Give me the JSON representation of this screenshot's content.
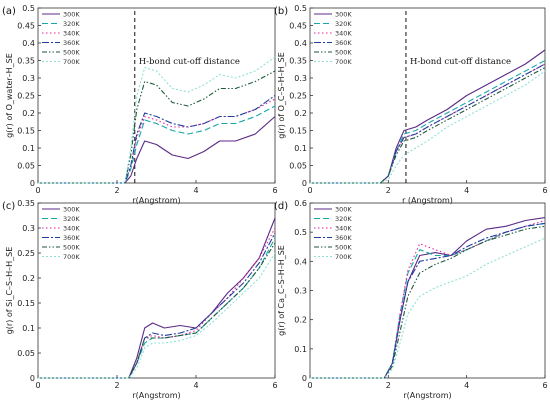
{
  "chart_data": [
    {
      "type": "line",
      "panel": "(a)",
      "xlabel": "r(Angstrom)",
      "ylabel": "g(r) of O_water–H_SE",
      "xlim": [
        0,
        6
      ],
      "ylim": [
        0,
        0.5
      ],
      "xticks": [
        0,
        2,
        4,
        6
      ],
      "yticks": [
        0,
        0.05,
        0.1,
        0.15,
        0.2,
        0.25,
        0.3,
        0.35,
        0.4,
        0.45,
        0.5
      ],
      "annotation": {
        "text": "H-bond cut-off distance",
        "x": 2.45
      },
      "legend_position": "top-left",
      "series": [
        {
          "name": "300K",
          "color": "#5b2a86",
          "dash": "",
          "x": [
            0,
            2.2,
            2.35,
            2.5,
            2.7,
            3.0,
            3.4,
            3.8,
            4.2,
            4.6,
            5.0,
            5.5,
            6.0
          ],
          "y": [
            0,
            0,
            0.02,
            0.07,
            0.12,
            0.11,
            0.08,
            0.07,
            0.09,
            0.12,
            0.12,
            0.14,
            0.19
          ]
        },
        {
          "name": "320K",
          "color": "#1aa6a6",
          "dash": "6,3",
          "x": [
            0,
            2.2,
            2.35,
            2.5,
            2.7,
            3.0,
            3.4,
            3.8,
            4.2,
            4.6,
            5.0,
            5.5,
            6.0
          ],
          "y": [
            0,
            0,
            0.04,
            0.11,
            0.18,
            0.17,
            0.15,
            0.14,
            0.15,
            0.17,
            0.17,
            0.19,
            0.22
          ]
        },
        {
          "name": "340K",
          "color": "#e6259b",
          "dash": "1.5,2.5",
          "x": [
            0,
            2.2,
            2.35,
            2.5,
            2.7,
            3.0,
            3.4,
            3.8,
            4.2,
            4.6,
            5.0,
            5.5,
            6.0
          ],
          "y": [
            0,
            0,
            0.05,
            0.13,
            0.19,
            0.18,
            0.16,
            0.16,
            0.17,
            0.19,
            0.19,
            0.21,
            0.24
          ]
        },
        {
          "name": "360K",
          "color": "#1f3f9e",
          "dash": "7,2,2,2",
          "x": [
            0,
            2.2,
            2.35,
            2.5,
            2.7,
            3.0,
            3.4,
            3.8,
            4.2,
            4.6,
            5.0,
            5.5,
            6.0
          ],
          "y": [
            0,
            0,
            0.05,
            0.14,
            0.2,
            0.19,
            0.17,
            0.16,
            0.17,
            0.19,
            0.19,
            0.21,
            0.25
          ]
        },
        {
          "name": "500K",
          "color": "#1e5a3a",
          "dash": "5,2,1.5,2,1.5,2",
          "x": [
            0,
            2.2,
            2.35,
            2.5,
            2.7,
            3.0,
            3.4,
            3.8,
            4.2,
            4.6,
            5.0,
            5.5,
            6.0
          ],
          "y": [
            0,
            0,
            0.08,
            0.21,
            0.29,
            0.28,
            0.23,
            0.22,
            0.24,
            0.27,
            0.27,
            0.29,
            0.32
          ]
        },
        {
          "name": "700K",
          "color": "#8fe0d8",
          "dash": "2,2",
          "x": [
            0,
            2.2,
            2.35,
            2.5,
            2.7,
            3.0,
            3.4,
            3.8,
            4.2,
            4.6,
            5.0,
            5.5,
            6.0
          ],
          "y": [
            0,
            0,
            0.1,
            0.25,
            0.33,
            0.32,
            0.27,
            0.26,
            0.28,
            0.31,
            0.3,
            0.32,
            0.36
          ]
        }
      ]
    },
    {
      "type": "line",
      "panel": "(b)",
      "xlabel": "r (Angstrom)",
      "ylabel": "g(r) of O_C–S–H–H_SE",
      "xlim": [
        0,
        6
      ],
      "ylim": [
        0,
        0.5
      ],
      "xticks": [
        0,
        2,
        4,
        6
      ],
      "yticks": [
        0,
        0.05,
        0.1,
        0.15,
        0.2,
        0.25,
        0.3,
        0.35,
        0.4,
        0.45,
        0.5
      ],
      "annotation": {
        "text": "H-bond cut-off distance",
        "x": 2.45
      },
      "legend_position": "top-left",
      "series": [
        {
          "name": "300K",
          "color": "#5b2a86",
          "dash": "",
          "x": [
            0,
            1.8,
            2.0,
            2.2,
            2.4,
            2.7,
            3.0,
            3.5,
            4.0,
            4.5,
            5.0,
            5.5,
            6.0
          ],
          "y": [
            0,
            0,
            0.02,
            0.1,
            0.15,
            0.16,
            0.18,
            0.21,
            0.25,
            0.28,
            0.31,
            0.34,
            0.38
          ]
        },
        {
          "name": "320K",
          "color": "#1aa6a6",
          "dash": "6,3",
          "x": [
            0,
            1.8,
            2.0,
            2.2,
            2.4,
            2.7,
            3.0,
            3.5,
            4.0,
            4.5,
            5.0,
            5.5,
            6.0
          ],
          "y": [
            0,
            0,
            0.02,
            0.09,
            0.14,
            0.15,
            0.17,
            0.2,
            0.23,
            0.26,
            0.29,
            0.32,
            0.35
          ]
        },
        {
          "name": "340K",
          "color": "#e6259b",
          "dash": "1.5,2.5",
          "x": [
            0,
            1.8,
            2.0,
            2.2,
            2.4,
            2.7,
            3.0,
            3.5,
            4.0,
            4.5,
            5.0,
            5.5,
            6.0
          ],
          "y": [
            0,
            0,
            0.02,
            0.09,
            0.13,
            0.14,
            0.16,
            0.19,
            0.22,
            0.25,
            0.28,
            0.31,
            0.34
          ]
        },
        {
          "name": "360K",
          "color": "#1f3f9e",
          "dash": "7,2,2,2",
          "x": [
            0,
            1.8,
            2.0,
            2.2,
            2.4,
            2.7,
            3.0,
            3.5,
            4.0,
            4.5,
            5.0,
            5.5,
            6.0
          ],
          "y": [
            0,
            0,
            0.02,
            0.09,
            0.13,
            0.14,
            0.16,
            0.19,
            0.22,
            0.25,
            0.28,
            0.31,
            0.34
          ]
        },
        {
          "name": "500K",
          "color": "#1e5a3a",
          "dash": "5,2,1.5,2,1.5,2",
          "x": [
            0,
            1.8,
            2.0,
            2.2,
            2.4,
            2.7,
            3.0,
            3.5,
            4.0,
            4.5,
            5.0,
            5.5,
            6.0
          ],
          "y": [
            0,
            0,
            0.02,
            0.08,
            0.12,
            0.13,
            0.15,
            0.18,
            0.21,
            0.24,
            0.27,
            0.3,
            0.33
          ]
        },
        {
          "name": "700K",
          "color": "#8fe0d8",
          "dash": "2,2",
          "x": [
            0,
            1.8,
            2.0,
            2.2,
            2.4,
            2.7,
            3.0,
            3.5,
            4.0,
            4.5,
            5.0,
            5.5,
            6.0
          ],
          "y": [
            0,
            0,
            0.01,
            0.05,
            0.08,
            0.1,
            0.12,
            0.16,
            0.19,
            0.22,
            0.25,
            0.28,
            0.32
          ]
        }
      ]
    },
    {
      "type": "line",
      "panel": "(c)",
      "xlabel": "r(Angstrom)",
      "ylabel": "g(r) of Si_C–S–H–H_SE",
      "xlim": [
        0,
        6
      ],
      "ylim": [
        0,
        0.35
      ],
      "xticks": [
        0,
        2,
        4,
        6
      ],
      "yticks": [
        0,
        0.05,
        0.1,
        0.15,
        0.2,
        0.25,
        0.3,
        0.35
      ],
      "legend_position": "top-left",
      "series": [
        {
          "name": "300K",
          "color": "#5b2a86",
          "dash": "",
          "x": [
            0,
            2.3,
            2.5,
            2.7,
            2.9,
            3.2,
            3.6,
            4.0,
            4.4,
            4.8,
            5.2,
            5.6,
            6.0
          ],
          "y": [
            0,
            0,
            0.04,
            0.1,
            0.11,
            0.1,
            0.105,
            0.1,
            0.13,
            0.17,
            0.2,
            0.24,
            0.32
          ]
        },
        {
          "name": "320K",
          "color": "#1aa6a6",
          "dash": "6,3",
          "x": [
            0,
            2.3,
            2.5,
            2.7,
            2.9,
            3.2,
            3.6,
            4.0,
            4.4,
            4.8,
            5.2,
            5.6,
            6.0
          ],
          "y": [
            0,
            0,
            0.03,
            0.07,
            0.08,
            0.08,
            0.085,
            0.09,
            0.12,
            0.15,
            0.18,
            0.22,
            0.28
          ]
        },
        {
          "name": "340K",
          "color": "#e6259b",
          "dash": "1.5,2.5",
          "x": [
            0,
            2.3,
            2.5,
            2.7,
            2.9,
            3.2,
            3.6,
            4.0,
            4.4,
            4.8,
            5.2,
            5.6,
            6.0
          ],
          "y": [
            0,
            0,
            0.03,
            0.08,
            0.085,
            0.08,
            0.085,
            0.095,
            0.13,
            0.16,
            0.2,
            0.24,
            0.3
          ]
        },
        {
          "name": "360K",
          "color": "#1f3f9e",
          "dash": "7,2,2,2",
          "x": [
            0,
            2.3,
            2.5,
            2.7,
            2.9,
            3.2,
            3.6,
            4.0,
            4.4,
            4.8,
            5.2,
            5.6,
            6.0
          ],
          "y": [
            0,
            0,
            0.03,
            0.08,
            0.09,
            0.085,
            0.09,
            0.1,
            0.13,
            0.16,
            0.19,
            0.23,
            0.29
          ]
        },
        {
          "name": "500K",
          "color": "#1e5a3a",
          "dash": "5,2,1.5,2,1.5,2",
          "x": [
            0,
            2.3,
            2.5,
            2.7,
            2.9,
            3.2,
            3.6,
            4.0,
            4.4,
            4.8,
            5.2,
            5.6,
            6.0
          ],
          "y": [
            0,
            0,
            0.03,
            0.08,
            0.08,
            0.08,
            0.085,
            0.09,
            0.12,
            0.15,
            0.18,
            0.22,
            0.27
          ]
        },
        {
          "name": "700K",
          "color": "#8fe0d8",
          "dash": "2,2",
          "x": [
            0,
            2.3,
            2.5,
            2.7,
            2.9,
            3.2,
            3.6,
            4.0,
            4.4,
            4.8,
            5.2,
            5.6,
            6.0
          ],
          "y": [
            0,
            0,
            0.02,
            0.06,
            0.07,
            0.07,
            0.075,
            0.085,
            0.11,
            0.14,
            0.17,
            0.2,
            0.25
          ]
        }
      ]
    },
    {
      "type": "line",
      "panel": "(d)",
      "xlabel": "r(Angstrom)",
      "ylabel": "g(r) of Ca_C–S–H–H_SE",
      "xlim": [
        0,
        6
      ],
      "ylim": [
        0,
        0.6
      ],
      "xticks": [
        0,
        2,
        4,
        6
      ],
      "yticks": [
        0,
        0.1,
        0.2,
        0.3,
        0.4,
        0.5,
        0.6
      ],
      "legend_position": "top-left",
      "series": [
        {
          "name": "300K",
          "color": "#5b2a86",
          "dash": "",
          "x": [
            0,
            1.9,
            2.1,
            2.3,
            2.5,
            2.8,
            3.2,
            3.6,
            4.0,
            4.5,
            5.0,
            5.5,
            6.0
          ],
          "y": [
            0,
            0,
            0.05,
            0.2,
            0.33,
            0.42,
            0.43,
            0.42,
            0.47,
            0.51,
            0.52,
            0.54,
            0.55
          ]
        },
        {
          "name": "320K",
          "color": "#1aa6a6",
          "dash": "6,3",
          "x": [
            0,
            1.9,
            2.1,
            2.3,
            2.5,
            2.8,
            3.2,
            3.6,
            4.0,
            4.5,
            5.0,
            5.5,
            6.0
          ],
          "y": [
            0,
            0,
            0.05,
            0.22,
            0.36,
            0.44,
            0.42,
            0.42,
            0.44,
            0.47,
            0.5,
            0.52,
            0.53
          ]
        },
        {
          "name": "340K",
          "color": "#e6259b",
          "dash": "1.5,2.5",
          "x": [
            0,
            1.9,
            2.1,
            2.3,
            2.5,
            2.8,
            3.2,
            3.6,
            4.0,
            4.5,
            5.0,
            5.5,
            6.0
          ],
          "y": [
            0,
            0,
            0.05,
            0.22,
            0.37,
            0.46,
            0.44,
            0.42,
            0.44,
            0.47,
            0.5,
            0.52,
            0.54
          ]
        },
        {
          "name": "360K",
          "color": "#1f3f9e",
          "dash": "7,2,2,2",
          "x": [
            0,
            1.9,
            2.1,
            2.3,
            2.5,
            2.8,
            3.2,
            3.6,
            4.0,
            4.5,
            5.0,
            5.5,
            6.0
          ],
          "y": [
            0,
            0,
            0.05,
            0.2,
            0.33,
            0.4,
            0.41,
            0.42,
            0.45,
            0.48,
            0.5,
            0.52,
            0.53
          ]
        },
        {
          "name": "500K",
          "color": "#1e5a3a",
          "dash": "5,2,1.5,2,1.5,2",
          "x": [
            0,
            1.9,
            2.1,
            2.3,
            2.5,
            2.8,
            3.2,
            3.6,
            4.0,
            4.5,
            5.0,
            5.5,
            6.0
          ],
          "y": [
            0,
            0,
            0.04,
            0.16,
            0.28,
            0.36,
            0.39,
            0.41,
            0.44,
            0.47,
            0.49,
            0.51,
            0.52
          ]
        },
        {
          "name": "700K",
          "color": "#8fe0d8",
          "dash": "2,2",
          "x": [
            0,
            1.9,
            2.1,
            2.3,
            2.5,
            2.8,
            3.2,
            3.6,
            4.0,
            4.5,
            5.0,
            5.5,
            6.0
          ],
          "y": [
            0,
            0,
            0.03,
            0.12,
            0.22,
            0.28,
            0.31,
            0.33,
            0.35,
            0.39,
            0.42,
            0.45,
            0.48
          ]
        }
      ]
    }
  ]
}
